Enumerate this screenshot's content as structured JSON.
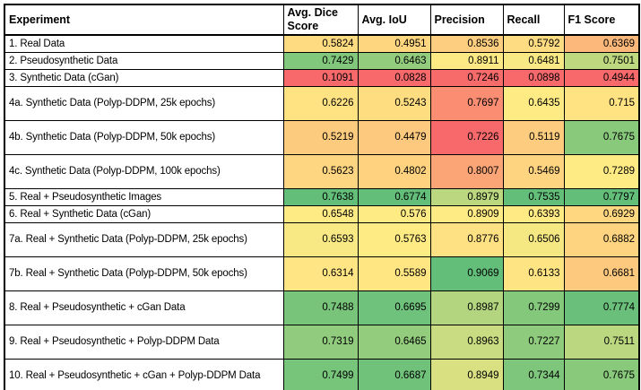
{
  "table": {
    "columns": [
      "Experiment",
      "Avg. Dice Score",
      "Avg. IoU",
      "Precision",
      "Recall",
      "F1 Score"
    ],
    "rows": [
      {
        "experiment": "1. Real Data",
        "tall": false,
        "values": [
          "0.5824",
          "0.4951",
          "0.8536",
          "0.5792",
          "0.6369"
        ],
        "colors": [
          "#FEDA81",
          "#FED680",
          "#FDCE7F",
          "#FEDC81",
          "#FCB87A"
        ]
      },
      {
        "experiment": "2. Pseudosynthetic Data",
        "tall": false,
        "values": [
          "0.7429",
          "0.6463",
          "0.8911",
          "0.6481",
          "0.7501"
        ],
        "colors": [
          "#81C77C",
          "#93CC7D",
          "#FDEA84",
          "#F9E984",
          "#BED880"
        ]
      },
      {
        "experiment": "3. Synthetic Data (cGan)",
        "tall": false,
        "values": [
          "0.1091",
          "0.0828",
          "0.7246",
          "0.0898",
          "0.4944"
        ],
        "colors": [
          "#F8696B",
          "#F8696B",
          "#F86B6B",
          "#F8696B",
          "#F8696B"
        ]
      },
      {
        "experiment": "4a. Synthetic Data (Polyp-DDPM, 25k epochs)",
        "tall": true,
        "values": [
          "0.6226",
          "0.5243",
          "0.7697",
          "0.6435",
          "0.715"
        ],
        "colors": [
          "#FFE383",
          "#FEDD81",
          "#FA8D72",
          "#FFEB84",
          "#FFE383"
        ]
      },
      {
        "experiment": "4b. Synthetic Data (Polyp-DDPM, 50k epochs)",
        "tall": true,
        "values": [
          "0.5219",
          "0.4479",
          "0.7226",
          "0.5119",
          "0.7675"
        ],
        "colors": [
          "#FDCB7E",
          "#FDC97E",
          "#F8696B",
          "#FDCC7E",
          "#89C97C"
        ]
      },
      {
        "experiment": "4c. Synthetic Data (Polyp-DDPM, 100k epochs)",
        "tall": true,
        "values": [
          "0.5623",
          "0.4802",
          "0.8007",
          "0.5469",
          "0.7289"
        ],
        "colors": [
          "#FED580",
          "#FED27F",
          "#FBA577",
          "#FED480",
          "#FFEB84"
        ]
      },
      {
        "experiment": "5. Real + Pseudosynthetic Images",
        "tall": false,
        "values": [
          "0.7638",
          "0.6774",
          "0.8979",
          "0.7535",
          "0.7797"
        ],
        "colors": [
          "#63BE7A",
          "#63BE7A",
          "#BBD780",
          "#63BE7A",
          "#63BE7A"
        ]
      },
      {
        "experiment": "6. Real + Synthetic Data (cGan)",
        "tall": false,
        "values": [
          "0.6548",
          "0.576",
          "0.8909",
          "0.6393",
          "0.6929"
        ],
        "colors": [
          "#FFEB84",
          "#FFEB84",
          "#FFEB84",
          "#FFEA84",
          "#FED780"
        ]
      },
      {
        "experiment": "7a. Real + Synthetic Data (Polyp-DDPM, 25k epochs)",
        "tall": true,
        "values": [
          "0.6593",
          "0.5763",
          "0.8776",
          "0.6506",
          "0.6882"
        ],
        "colors": [
          "#F9E984",
          "#FFEB84",
          "#FEE182",
          "#F5E883",
          "#FED480"
        ]
      },
      {
        "experiment": "7b. Real + Synthetic Data (Polyp-DDPM, 50k epochs)",
        "tall": true,
        "values": [
          "0.6314",
          "0.5589",
          "0.9069",
          "0.6133",
          "0.6681"
        ],
        "colors": [
          "#FFE583",
          "#FFE683",
          "#63BE7A",
          "#FFE483",
          "#FDC97E"
        ]
      },
      {
        "experiment": "8. Real + Pseudosynthetic + cGan Data",
        "tall": true,
        "values": [
          "0.7488",
          "0.6695",
          "0.8987",
          "0.7299",
          "0.7774"
        ],
        "colors": [
          "#78C47B",
          "#6FC27B",
          "#B3D57F",
          "#84C87C",
          "#6AC07B"
        ]
      },
      {
        "experiment": "9. Real + Pseudosynthetic + Polyp-DDPM Data",
        "tall": true,
        "values": [
          "0.7319",
          "0.6465",
          "0.8963",
          "0.7227",
          "0.7511"
        ],
        "colors": [
          "#91CB7D",
          "#93CC7D",
          "#CADC81",
          "#8FCB7D",
          "#BBD780"
        ]
      },
      {
        "experiment": "10. Real + Pseudosynthetic + cGan + Polyp-DDPM Data",
        "tall": true,
        "values": [
          "0.7499",
          "0.6687",
          "0.8949",
          "0.7344",
          "0.7675"
        ],
        "colors": [
          "#77C47B",
          "#70C27B",
          "#D8E082",
          "#7EC67C",
          "#89C97C"
        ]
      }
    ]
  },
  "chart_data": {
    "type": "table",
    "title": "Segmentation experiment results with per-column red-yellow-green color scale",
    "columns": [
      "Experiment",
      "Avg. Dice Score",
      "Avg. IoU",
      "Precision",
      "Recall",
      "F1 Score"
    ],
    "rows": [
      {
        "experiment": "1. Real Data",
        "avg_dice_score": 0.5824,
        "avg_iou": 0.4951,
        "precision": 0.8536,
        "recall": 0.5792,
        "f1_score": 0.6369
      },
      {
        "experiment": "2. Pseudosynthetic Data",
        "avg_dice_score": 0.7429,
        "avg_iou": 0.6463,
        "precision": 0.8911,
        "recall": 0.6481,
        "f1_score": 0.7501
      },
      {
        "experiment": "3. Synthetic Data (cGan)",
        "avg_dice_score": 0.1091,
        "avg_iou": 0.0828,
        "precision": 0.7246,
        "recall": 0.0898,
        "f1_score": 0.4944
      },
      {
        "experiment": "4a. Synthetic Data (Polyp-DDPM, 25k epochs)",
        "avg_dice_score": 0.6226,
        "avg_iou": 0.5243,
        "precision": 0.7697,
        "recall": 0.6435,
        "f1_score": 0.715
      },
      {
        "experiment": "4b. Synthetic Data (Polyp-DDPM, 50k epochs)",
        "avg_dice_score": 0.5219,
        "avg_iou": 0.4479,
        "precision": 0.7226,
        "recall": 0.5119,
        "f1_score": 0.7675
      },
      {
        "experiment": "4c. Synthetic Data (Polyp-DDPM, 100k epochs)",
        "avg_dice_score": 0.5623,
        "avg_iou": 0.4802,
        "precision": 0.8007,
        "recall": 0.5469,
        "f1_score": 0.7289
      },
      {
        "experiment": "5. Real + Pseudosynthetic Images",
        "avg_dice_score": 0.7638,
        "avg_iou": 0.6774,
        "precision": 0.8979,
        "recall": 0.7535,
        "f1_score": 0.7797
      },
      {
        "experiment": "6. Real + Synthetic Data (cGan)",
        "avg_dice_score": 0.6548,
        "avg_iou": 0.576,
        "precision": 0.8909,
        "recall": 0.6393,
        "f1_score": 0.6929
      },
      {
        "experiment": "7a. Real + Synthetic Data (Polyp-DDPM, 25k epochs)",
        "avg_dice_score": 0.6593,
        "avg_iou": 0.5763,
        "precision": 0.8776,
        "recall": 0.6506,
        "f1_score": 0.6882
      },
      {
        "experiment": "7b. Real + Synthetic Data (Polyp-DDPM, 50k epochs)",
        "avg_dice_score": 0.6314,
        "avg_iou": 0.5589,
        "precision": 0.9069,
        "recall": 0.6133,
        "f1_score": 0.6681
      },
      {
        "experiment": "8. Real + Pseudosynthetic + cGan Data",
        "avg_dice_score": 0.7488,
        "avg_iou": 0.6695,
        "precision": 0.8987,
        "recall": 0.7299,
        "f1_score": 0.7774
      },
      {
        "experiment": "9. Real + Pseudosynthetic + Polyp-DDPM Data",
        "avg_dice_score": 0.7319,
        "avg_iou": 0.6465,
        "precision": 0.8963,
        "recall": 0.7227,
        "f1_score": 0.7511
      },
      {
        "experiment": "10. Real + Pseudosynthetic + cGan + Polyp-DDPM Data",
        "avg_dice_score": 0.7499,
        "avg_iou": 0.6687,
        "precision": 0.8949,
        "recall": 0.7344,
        "f1_score": 0.7675
      }
    ],
    "color_scale": {
      "style": "3-color scale applied independently per metric column",
      "min_color": "#F8696B",
      "mid_color": "#FFEB84",
      "max_color": "#63BE7A"
    }
  }
}
